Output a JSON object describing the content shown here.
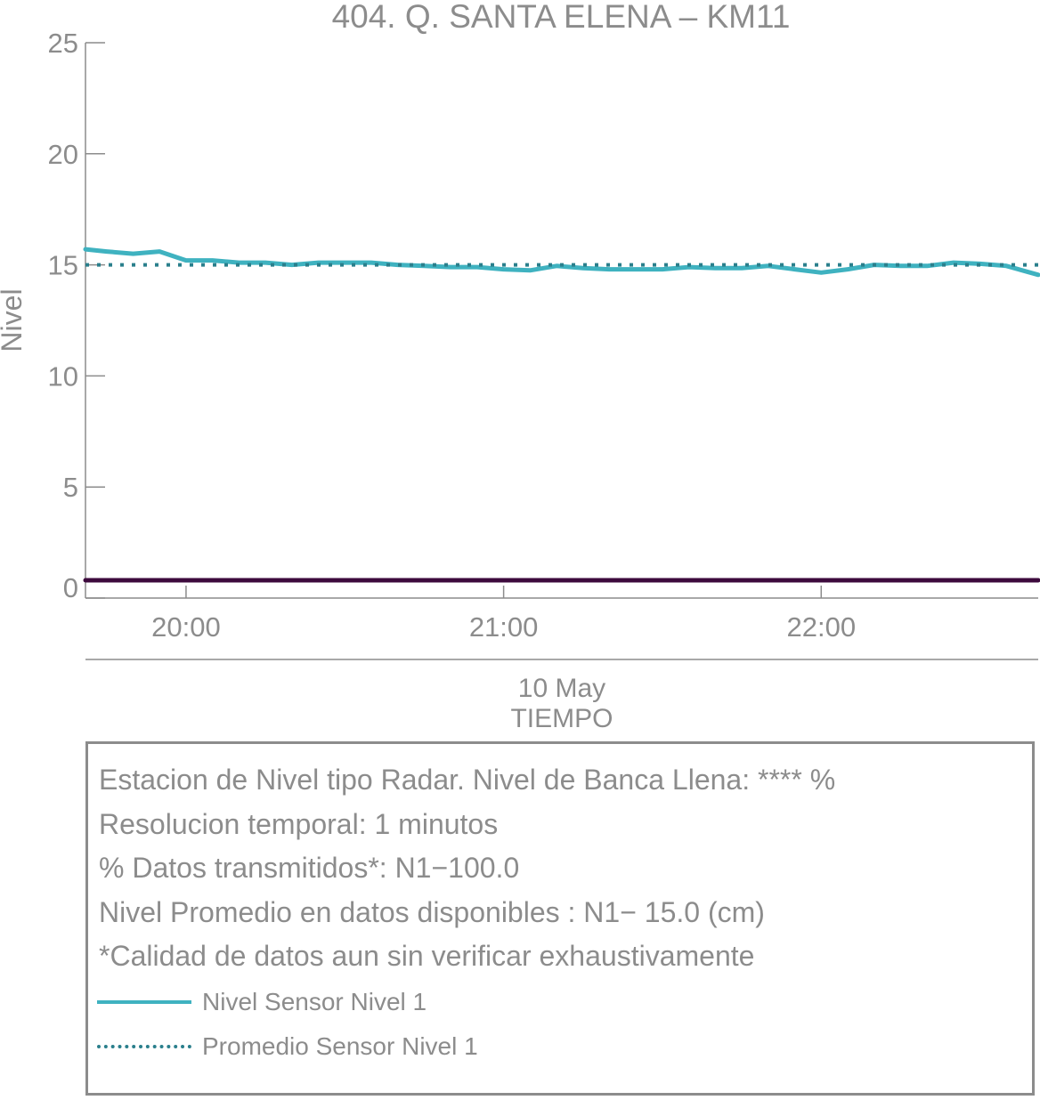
{
  "chart_data": {
    "type": "line",
    "title": "404. Q. SANTA ELENA – KM11",
    "xlabel": "TIEMPO",
    "date_label": "10 May",
    "ylabel": "Nivel",
    "ylim": [
      0,
      25
    ],
    "yticks": [
      "0",
      "5",
      "10",
      "15",
      "20",
      "25"
    ],
    "xlim": [
      "19:41",
      "22:41"
    ],
    "xticks": [
      {
        "time": "20:00",
        "label": "20:00"
      },
      {
        "time": "21:00",
        "label": "21:00"
      },
      {
        "time": "22:00",
        "label": "22:00"
      }
    ],
    "grid": false,
    "series": [
      {
        "name": "Nivel Sensor Nivel 1",
        "style": "solid",
        "color": "#3fb2c0",
        "x": [
          "19:41",
          "19:45",
          "19:50",
          "19:55",
          "20:00",
          "20:05",
          "20:10",
          "20:15",
          "20:20",
          "20:25",
          "20:30",
          "20:35",
          "20:40",
          "20:45",
          "20:50",
          "20:55",
          "21:00",
          "21:05",
          "21:10",
          "21:15",
          "21:20",
          "21:25",
          "21:30",
          "21:35",
          "21:40",
          "21:45",
          "21:50",
          "21:55",
          "22:00",
          "22:05",
          "22:10",
          "22:15",
          "22:20",
          "22:25",
          "22:30",
          "22:35",
          "22:41"
        ],
        "values": [
          15.7,
          15.6,
          15.5,
          15.6,
          15.2,
          15.2,
          15.1,
          15.1,
          15.0,
          15.1,
          15.1,
          15.1,
          15.0,
          14.95,
          14.9,
          14.9,
          14.8,
          14.75,
          14.95,
          14.85,
          14.8,
          14.8,
          14.8,
          14.9,
          14.85,
          14.85,
          14.95,
          14.8,
          14.65,
          14.8,
          15.0,
          14.95,
          14.95,
          15.1,
          15.05,
          14.95,
          14.55
        ]
      },
      {
        "name": "Promedio Sensor Nivel 1",
        "style": "dotted",
        "color": "#2a7f8c",
        "x": [
          "19:41",
          "22:41"
        ],
        "values": [
          15.0,
          15.0
        ]
      },
      {
        "name": "",
        "style": "solid",
        "color": "#3d0a3d",
        "x": [
          "19:41",
          "22:41"
        ],
        "values": [
          0.8,
          0.8
        ]
      }
    ]
  },
  "info": {
    "lines": [
      "Estacion de Nivel tipo Radar. Nivel de Banca Llena: **** %",
      "Resolucion temporal: 1 minutos",
      "% Datos transmitidos*: N1−100.0",
      "Nivel Promedio en datos disponibles : N1− 15.0 (cm)",
      "*Calidad de datos aun sin verificar exhaustivamente"
    ],
    "legend": [
      {
        "label": "Nivel Sensor Nivel 1",
        "style": "solid",
        "color": "#3fb2c0"
      },
      {
        "label": "Promedio Sensor Nivel 1",
        "style": "dotted",
        "color": "#2a7f8c"
      }
    ]
  }
}
